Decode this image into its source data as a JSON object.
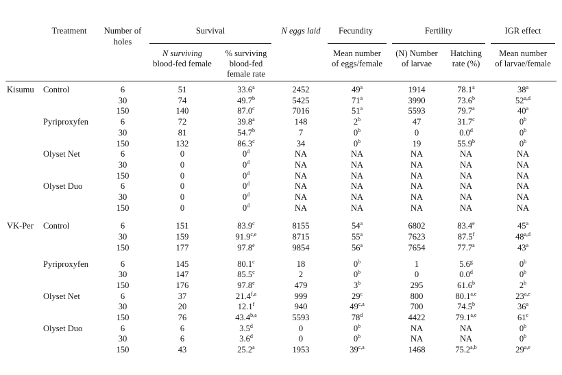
{
  "headers": {
    "treatment": "Treatment",
    "holes": [
      "Number of",
      "holes"
    ],
    "survival": "Survival",
    "eggs_laid": "N eggs laid",
    "fecundity": "Fecundity",
    "fertility": "Fertility",
    "igr": "IGR effect",
    "sub_surviving": [
      "N surviving",
      "blood-fed female"
    ],
    "sub_pct": [
      "% surviving",
      "blood-fed",
      "female rate"
    ],
    "sub_mean_eggs": [
      "Mean number",
      "of eggs/female"
    ],
    "sub_larvae": [
      "(N) Number",
      "of larvae"
    ],
    "sub_hatch": [
      "Hatching",
      "rate (%)"
    ],
    "sub_mean_larvae": [
      "Mean number",
      "of larvae/female"
    ]
  },
  "rows": [
    {
      "site": "Kisumu",
      "treatment": "Control",
      "holes": "6",
      "n": "51",
      "pct": "33.6",
      "pct_s": "a",
      "eggs": "2452",
      "fec": "49",
      "fec_s": "a",
      "larvae": "1914",
      "hatch": "78.1",
      "hatch_s": "a",
      "igr": "38",
      "igr_s": "a"
    },
    {
      "site": "",
      "treatment": "",
      "holes": "30",
      "n": "74",
      "pct": "49.7",
      "pct_s": "b",
      "eggs": "5425",
      "fec": "71",
      "fec_s": "a",
      "larvae": "3990",
      "hatch": "73.6",
      "hatch_s": "b",
      "igr": "52",
      "igr_s": "a,d"
    },
    {
      "site": "",
      "treatment": "",
      "holes": "150",
      "n": "140",
      "pct": "87.0",
      "pct_s": "c",
      "eggs": "7016",
      "fec": "51",
      "fec_s": "a",
      "larvae": "5593",
      "hatch": "79.7",
      "hatch_s": "a",
      "igr": "40",
      "igr_s": "a"
    },
    {
      "site": "",
      "treatment": "Pyriproxyfen",
      "holes": "6",
      "n": "72",
      "pct": "39.8",
      "pct_s": "a",
      "eggs": "148",
      "fec": "2",
      "fec_s": "b",
      "larvae": "47",
      "hatch": "31.7",
      "hatch_s": "c",
      "igr": "0",
      "igr_s": "b"
    },
    {
      "site": "",
      "treatment": "",
      "holes": "30",
      "n": "81",
      "pct": "54.7",
      "pct_s": "b",
      "eggs": "7",
      "fec": "0",
      "fec_s": "b",
      "larvae": "0",
      "hatch": "0.0",
      "hatch_s": "d",
      "igr": "0",
      "igr_s": "b"
    },
    {
      "site": "",
      "treatment": "",
      "holes": "150",
      "n": "132",
      "pct": "86.3",
      "pct_s": "c",
      "eggs": "34",
      "fec": "0",
      "fec_s": "b",
      "larvae": "19",
      "hatch": "55.9",
      "hatch_s": "b",
      "igr": "0",
      "igr_s": "b"
    },
    {
      "site": "",
      "treatment": "Olyset Net",
      "holes": "6",
      "n": "0",
      "pct": "0",
      "pct_s": "d",
      "eggs": "NA",
      "fec": "NA",
      "fec_s": "",
      "larvae": "NA",
      "hatch": "NA",
      "hatch_s": "",
      "igr": "NA",
      "igr_s": ""
    },
    {
      "site": "",
      "treatment": "",
      "holes": "30",
      "n": "0",
      "pct": "0",
      "pct_s": "d",
      "eggs": "NA",
      "fec": "NA",
      "fec_s": "",
      "larvae": "NA",
      "hatch": "NA",
      "hatch_s": "",
      "igr": "NA",
      "igr_s": ""
    },
    {
      "site": "",
      "treatment": "",
      "holes": "150",
      "n": "0",
      "pct": "0",
      "pct_s": "d",
      "eggs": "NA",
      "fec": "NA",
      "fec_s": "",
      "larvae": "NA",
      "hatch": "NA",
      "hatch_s": "",
      "igr": "NA",
      "igr_s": ""
    },
    {
      "site": "",
      "treatment": "Olyset Duo",
      "holes": "6",
      "n": "0",
      "pct": "0",
      "pct_s": "d",
      "eggs": "NA",
      "fec": "NA",
      "fec_s": "",
      "larvae": "NA",
      "hatch": "NA",
      "hatch_s": "",
      "igr": "NA",
      "igr_s": ""
    },
    {
      "site": "",
      "treatment": "",
      "holes": "30",
      "n": "0",
      "pct": "0",
      "pct_s": "d",
      "eggs": "NA",
      "fec": "NA",
      "fec_s": "",
      "larvae": "NA",
      "hatch": "NA",
      "hatch_s": "",
      "igr": "NA",
      "igr_s": ""
    },
    {
      "site": "",
      "treatment": "",
      "holes": "150",
      "n": "0",
      "pct": "0",
      "pct_s": "d",
      "eggs": "NA",
      "fec": "NA",
      "fec_s": "",
      "larvae": "NA",
      "hatch": "NA",
      "hatch_s": "",
      "igr": "NA",
      "igr_s": ""
    },
    {
      "site": "VK-Per",
      "treatment": "Control",
      "holes": "6",
      "n": "151",
      "pct": "83.9",
      "pct_s": "c",
      "eggs": "8155",
      "fec": "54",
      "fec_s": "a",
      "larvae": "6802",
      "hatch": "83.4",
      "hatch_s": "e",
      "igr": "45",
      "igr_s": "a"
    },
    {
      "site": "",
      "treatment": "",
      "holes": "30",
      "n": "159",
      "pct": "91.9",
      "pct_s": "c,e",
      "eggs": "8715",
      "fec": "55",
      "fec_s": "a",
      "larvae": "7623",
      "hatch": "87.5",
      "hatch_s": "f",
      "igr": "48",
      "igr_s": "a,d"
    },
    {
      "site": "",
      "treatment": "",
      "holes": "150",
      "n": "177",
      "pct": "97.8",
      "pct_s": "e",
      "eggs": "9854",
      "fec": "56",
      "fec_s": "a",
      "larvae": "7654",
      "hatch": "77.7",
      "hatch_s": "a",
      "igr": "43",
      "igr_s": "a"
    },
    {
      "site": "",
      "treatment": "Pyriproxyfen",
      "holes": "6",
      "n": "145",
      "pct": "80.1",
      "pct_s": "c",
      "eggs": "18",
      "fec": "0",
      "fec_s": "b",
      "larvae": "1",
      "hatch": "5.6",
      "hatch_s": "g",
      "igr": "0",
      "igr_s": "b"
    },
    {
      "site": "",
      "treatment": "",
      "holes": "30",
      "n": "147",
      "pct": "85.5",
      "pct_s": "c",
      "eggs": "2",
      "fec": "0",
      "fec_s": "b",
      "larvae": "0",
      "hatch": "0.0",
      "hatch_s": "d",
      "igr": "0",
      "igr_s": "b"
    },
    {
      "site": "",
      "treatment": "",
      "holes": "150",
      "n": "176",
      "pct": "97.8",
      "pct_s": "e",
      "eggs": "479",
      "fec": "3",
      "fec_s": "b",
      "larvae": "295",
      "hatch": "61.6",
      "hatch_s": "b",
      "igr": "2",
      "igr_s": "b"
    },
    {
      "site": "",
      "treatment": "Olyset Net",
      "holes": "6",
      "n": "37",
      "pct": "21.4",
      "pct_s": "f,a",
      "eggs": "999",
      "fec": "29",
      "fec_s": "c",
      "larvae": "800",
      "hatch": "80.1",
      "hatch_s": "a,e",
      "igr": "23",
      "igr_s": "a,e"
    },
    {
      "site": "",
      "treatment": "",
      "holes": "30",
      "n": "20",
      "pct": "12.1",
      "pct_s": "f",
      "eggs": "940",
      "fec": "49",
      "fec_s": "c,a",
      "larvae": "700",
      "hatch": "74.5",
      "hatch_s": "b",
      "igr": "36",
      "igr_s": "a"
    },
    {
      "site": "",
      "treatment": "",
      "holes": "150",
      "n": "76",
      "pct": "43.4",
      "pct_s": "b,a",
      "eggs": "5593",
      "fec": "78",
      "fec_s": "d",
      "larvae": "4422",
      "hatch": "79.1",
      "hatch_s": "a,e",
      "igr": "61",
      "igr_s": "c"
    },
    {
      "site": "",
      "treatment": "Olyset Duo",
      "holes": "6",
      "n": "6",
      "pct": "3.5",
      "pct_s": "d",
      "eggs": "0",
      "fec": "0",
      "fec_s": "b",
      "larvae": "NA",
      "hatch": "NA",
      "hatch_s": "",
      "igr": "0",
      "igr_s": "b"
    },
    {
      "site": "",
      "treatment": "",
      "holes": "30",
      "n": "6",
      "pct": "3.6",
      "pct_s": "d",
      "eggs": "0",
      "fec": "0",
      "fec_s": "b",
      "larvae": "NA",
      "hatch": "NA",
      "hatch_s": "",
      "igr": "0",
      "igr_s": "b"
    },
    {
      "site": "",
      "treatment": "",
      "holes": "150",
      "n": "43",
      "pct": "25.2",
      "pct_s": "a",
      "eggs": "1953",
      "fec": "39",
      "fec_s": "c,a",
      "larvae": "1468",
      "hatch": "75.2",
      "hatch_s": "a,b",
      "igr": "29",
      "igr_s": "a,e"
    }
  ]
}
